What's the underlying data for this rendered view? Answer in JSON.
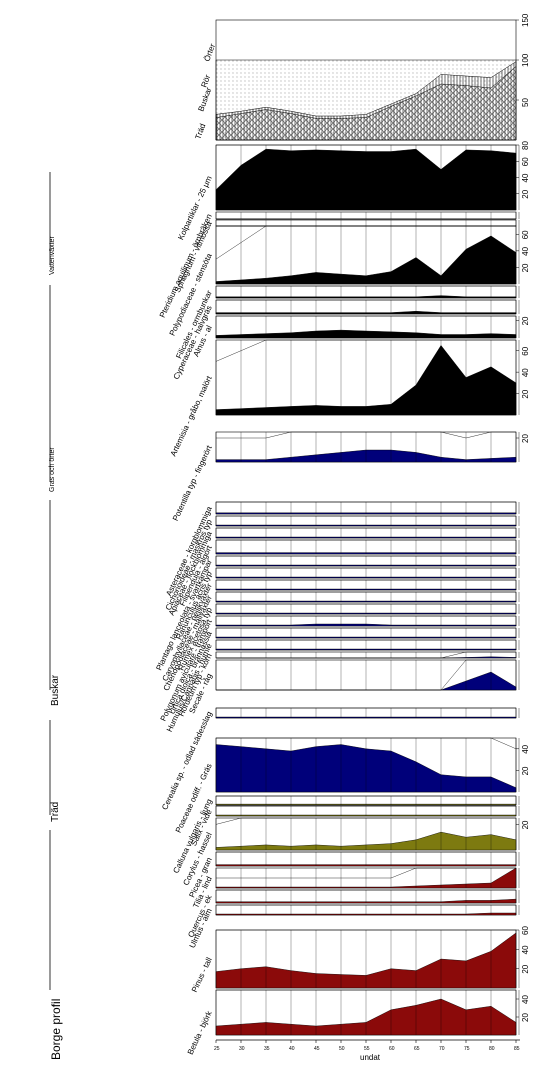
{
  "title": "Borge profil",
  "depth_axis_label": "undat",
  "depth_ticks": [
    "25",
    "30",
    "35",
    "40",
    "45",
    "50",
    "55",
    "60",
    "65",
    "70",
    "75",
    "80",
    "85"
  ],
  "group_labels": [
    "Träd",
    "Buskar",
    "Gras och örter",
    "Vattenväxter"
  ],
  "taxa": [
    "Betula - björk",
    "Pinus - tall",
    "Ulmus - alm",
    "Quercus - ek",
    "Tilia - lind",
    "Picea - gran",
    "Corylus - hassel",
    "Salix - vide",
    "Calluna vulgaris - ljung",
    "Poaceae odiff. - Gräs",
    "Cerealia sp. - odlad sädesslag",
    "Secale - råg",
    "Hordeum typ - korn",
    "Humulus/Cannabis - humle",
    "Urtica dioica - brännässla",
    "Polygonum aviculare - trampört",
    "Rumex acetosa typ",
    "Chenopodiaceae - mållväxter",
    "Caryophyllaceae - nejlikväxter",
    "Ranunculus acris typ",
    "Plantago lanceolata - svartkämpar",
    "Filipendula - älgört",
    "Apiaceae - flockblommiga",
    "Cichorioideae - maskros typ",
    "Asteraceae - korgblommiga",
    "Potentilla typ - fingerört",
    "Artemisia - gråbo, malört",
    "Alnus - al",
    "Cyperaceae - halvgräs",
    "Filicales - ormbunkar",
    "Polypodiaceae - stensöta",
    "Sphagnum - vitmossa",
    "Pteridium aquilinum - örnbräken",
    "Kolpartiklar - 25 µm"
  ],
  "total_axis": {
    "legend": [
      "Träd",
      "Buskar",
      "Rör",
      "Örter"
    ],
    "ticks": [
      "50",
      "100",
      "150"
    ]
  },
  "colors": {
    "trees": "#8b0a0a",
    "shrubs": "#7d7a10",
    "herbs": "#00007a",
    "other": "#000000"
  },
  "chart_data": {
    "type": "area",
    "title": "Borge profil",
    "depth_label": "undat",
    "depths": [
      25,
      30,
      35,
      40,
      45,
      50,
      55,
      60,
      65,
      70,
      75,
      80,
      85
    ],
    "panels": [
      {
        "name": "Betula - björk",
        "color": "trees",
        "max": 50,
        "ticks": [
          "20",
          "40"
        ],
        "values": [
          10,
          12,
          14,
          12,
          10,
          12,
          14,
          28,
          33,
          40,
          28,
          32,
          14
        ]
      },
      {
        "name": "Pinus - tall",
        "color": "trees",
        "max": 60,
        "ticks": [
          "20",
          "40",
          "60"
        ],
        "values": [
          17,
          20,
          22,
          18,
          15,
          14,
          13,
          20,
          18,
          30,
          28,
          38,
          57
        ]
      },
      {
        "name": "Ulmus - alm",
        "color": "trees",
        "max": 10,
        "ticks": [],
        "values": [
          1,
          1,
          1,
          1,
          1,
          1,
          1,
          1,
          1,
          1,
          1,
          2,
          2
        ]
      },
      {
        "name": "Quercus - ek",
        "color": "trees",
        "max": 10,
        "ticks": [],
        "values": [
          1,
          1,
          1,
          1,
          1,
          1,
          1,
          1,
          1,
          1,
          2,
          2,
          3
        ]
      },
      {
        "name": "Tilia - lind",
        "color": "trees",
        "max": 20,
        "ticks": [],
        "values": [
          1,
          1,
          1,
          1,
          1,
          1,
          1,
          1,
          2,
          3,
          4,
          5,
          20
        ]
      },
      {
        "name": "Picea - gran",
        "color": "trees",
        "max": 10,
        "ticks": [],
        "values": [
          1,
          1,
          1,
          1,
          1,
          1,
          1,
          1,
          1,
          1,
          1,
          1,
          1
        ]
      },
      {
        "name": "Corylus - hassel",
        "color": "shrubs",
        "max": 25,
        "ticks": [
          "20"
        ],
        "values": [
          2,
          3,
          4,
          3,
          4,
          3,
          4,
          5,
          8,
          14,
          10,
          12,
          8
        ]
      },
      {
        "name": "Salix - vide",
        "color": "shrubs",
        "max": 10,
        "ticks": [],
        "values": [
          1,
          1,
          1,
          1,
          1,
          1,
          1,
          1,
          1,
          1,
          1,
          1,
          1
        ]
      },
      {
        "name": "Calluna vulgaris - ljung",
        "color": "shrubs",
        "max": 10,
        "ticks": [],
        "values": [
          1,
          1,
          1,
          1,
          1,
          1,
          1,
          1,
          1,
          1,
          1,
          1,
          1
        ]
      },
      {
        "name": "Poaceae odiff. - Gräs",
        "color": "herbs",
        "max": 50,
        "ticks": [
          "20",
          "40"
        ],
        "values": [
          44,
          42,
          40,
          38,
          42,
          44,
          40,
          38,
          28,
          16,
          14,
          14,
          4
        ]
      },
      {
        "name": "Cerealia sp. - odlad sädesslag",
        "color": "herbs",
        "max": 10,
        "ticks": [],
        "values": [
          1,
          1,
          1,
          1,
          1,
          1,
          1,
          1,
          1,
          1,
          1,
          1,
          1
        ]
      },
      {
        "name": "Secale - råg",
        "color": "herbs",
        "max": 10,
        "ticks": [],
        "values": [
          0,
          0,
          0,
          0,
          0,
          0,
          0,
          0,
          0,
          0,
          3,
          6,
          1
        ]
      },
      {
        "name": "Hordeum typ - korn",
        "color": "herbs",
        "max": 10,
        "ticks": [],
        "values": [
          0,
          0,
          0,
          0,
          0,
          0,
          0,
          0,
          0,
          0,
          1,
          2,
          1
        ]
      },
      {
        "name": "Humulus/Cannabis - humle",
        "color": "herbs",
        "max": 10,
        "ticks": [],
        "values": [
          1,
          1,
          1,
          1,
          1,
          1,
          1,
          1,
          1,
          1,
          1,
          1,
          1
        ]
      },
      {
        "name": "Urtica dioica - brännässla",
        "color": "herbs",
        "max": 10,
        "ticks": [],
        "values": [
          1,
          1,
          1,
          1,
          1,
          1,
          1,
          1,
          1,
          1,
          1,
          1,
          1
        ]
      },
      {
        "name": "Polygonum aviculare - trampört",
        "color": "herbs",
        "max": 10,
        "ticks": [],
        "values": [
          1,
          1,
          1,
          1,
          2,
          2,
          2,
          1,
          1,
          1,
          1,
          1,
          1
        ]
      },
      {
        "name": "Rumex acetosa typ",
        "color": "herbs",
        "max": 10,
        "ticks": [],
        "values": [
          1,
          1,
          1,
          1,
          1,
          1,
          1,
          1,
          1,
          1,
          1,
          1,
          1
        ]
      },
      {
        "name": "Chenopodiaceae - mållväxter",
        "color": "herbs",
        "max": 10,
        "ticks": [],
        "values": [
          1,
          1,
          1,
          1,
          1,
          1,
          1,
          1,
          1,
          1,
          1,
          1,
          1
        ]
      },
      {
        "name": "Caryophyllaceae - nejlikväxter",
        "color": "herbs",
        "max": 10,
        "ticks": [],
        "values": [
          1,
          1,
          1,
          1,
          1,
          1,
          1,
          1,
          1,
          1,
          1,
          1,
          1
        ]
      },
      {
        "name": "Ranunculus acris typ",
        "color": "herbs",
        "max": 10,
        "ticks": [],
        "values": [
          1,
          1,
          1,
          1,
          1,
          1,
          1,
          1,
          1,
          1,
          1,
          1,
          1
        ]
      },
      {
        "name": "Plantago lanceolata - svartkämpar",
        "color": "herbs",
        "max": 10,
        "ticks": [],
        "values": [
          1,
          1,
          1,
          1,
          1,
          1,
          1,
          1,
          1,
          1,
          1,
          1,
          1
        ]
      },
      {
        "name": "Filipendula - älgört",
        "color": "herbs",
        "max": 10,
        "ticks": [],
        "values": [
          1,
          1,
          1,
          1,
          1,
          1,
          1,
          1,
          1,
          1,
          1,
          1,
          1
        ]
      },
      {
        "name": "Apiaceae - flockblommiga",
        "color": "herbs",
        "max": 10,
        "ticks": [],
        "values": [
          1,
          1,
          1,
          1,
          1,
          1,
          1,
          1,
          1,
          1,
          1,
          1,
          1
        ]
      },
      {
        "name": "Cichorioideae - maskros typ",
        "color": "herbs",
        "max": 10,
        "ticks": [],
        "values": [
          1,
          1,
          1,
          1,
          1,
          1,
          1,
          1,
          1,
          1,
          1,
          1,
          1
        ]
      },
      {
        "name": "Asteraceae - korgblommiga",
        "color": "herbs",
        "max": 10,
        "ticks": [],
        "values": [
          1,
          1,
          1,
          1,
          1,
          1,
          1,
          1,
          1,
          1,
          1,
          1,
          1
        ]
      },
      {
        "name": "Potentilla typ - fingerört",
        "color": "herbs",
        "max": 25,
        "ticks": [
          "20"
        ],
        "values": [
          2,
          2,
          2,
          4,
          6,
          8,
          10,
          10,
          8,
          4,
          2,
          3,
          4
        ]
      },
      {
        "name": "Artemisia - gråbo, malört",
        "color": "other",
        "max": 70,
        "ticks": [
          "20",
          "40",
          "60"
        ],
        "values": [
          5,
          6,
          7,
          8,
          9,
          8,
          8,
          10,
          28,
          65,
          35,
          45,
          30
        ]
      },
      {
        "name": "Alnus - al",
        "color": "other",
        "max": 25,
        "ticks": [
          "20"
        ],
        "values": [
          3,
          4,
          5,
          6,
          8,
          9,
          8,
          7,
          6,
          4,
          4,
          5,
          4
        ]
      },
      {
        "name": "Cyperaceae - halvgräs",
        "color": "other",
        "max": 10,
        "ticks": [],
        "values": [
          1,
          1,
          1,
          1,
          1,
          1,
          1,
          1,
          2,
          1,
          1,
          1,
          1
        ]
      },
      {
        "name": "Filicales - ormbunkar",
        "color": "other",
        "max": 10,
        "ticks": [],
        "values": [
          1,
          1,
          1,
          1,
          1,
          1,
          1,
          1,
          1,
          2,
          1,
          1,
          1
        ]
      },
      {
        "name": "Polypodiaceae - stensöta",
        "color": "other",
        "max": 70,
        "ticks": [
          "20",
          "40",
          "60"
        ],
        "values": [
          3,
          5,
          7,
          10,
          14,
          12,
          10,
          15,
          32,
          10,
          42,
          58,
          38
        ]
      },
      {
        "name": "Sphagnum - vitmossa",
        "color": "other",
        "max": 10,
        "ticks": [],
        "values": [
          0,
          0,
          0,
          0,
          0,
          0,
          0,
          0,
          0,
          0,
          0,
          0,
          0
        ]
      },
      {
        "name": "Pteridium aquilinum - örnbräken",
        "color": "other",
        "max": 10,
        "ticks": [],
        "values": [
          0,
          0,
          0,
          0,
          0,
          0,
          0,
          0,
          0,
          0,
          0,
          0,
          0
        ]
      },
      {
        "name": "Kolpartiklar - 25 µm",
        "color": "other",
        "max": 80,
        "ticks": [
          "20",
          "40",
          "60",
          "80"
        ],
        "values": [
          25,
          55,
          75,
          73,
          74,
          73,
          72,
          72,
          75,
          50,
          74,
          73,
          70
        ]
      }
    ],
    "summary": {
      "name": "Totals",
      "max": 150,
      "ticks": [
        "50",
        "100",
        "150"
      ],
      "trees": [
        28,
        33,
        38,
        33,
        27,
        27,
        28,
        42,
        55,
        70,
        68,
        65,
        92
      ],
      "shrubs": [
        32,
        36,
        41,
        36,
        30,
        30,
        32,
        45,
        58,
        82,
        80,
        78,
        98
      ],
      "total": [
        100,
        100,
        100,
        100,
        100,
        100,
        100,
        100,
        100,
        100,
        100,
        100,
        100
      ]
    }
  }
}
